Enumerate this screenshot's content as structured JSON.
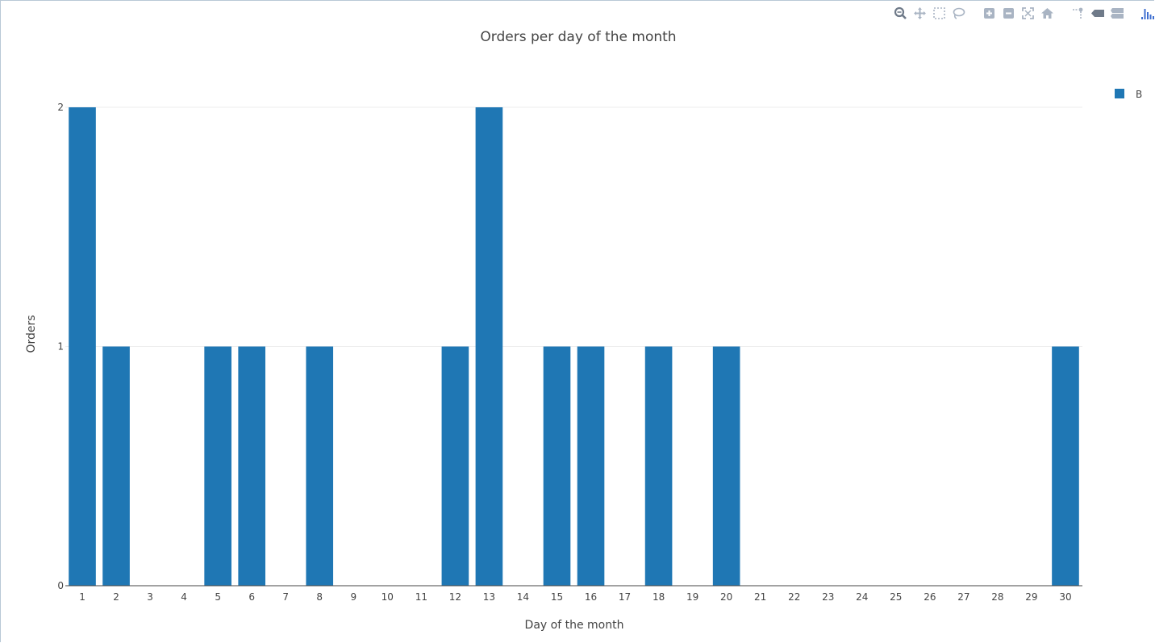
{
  "modebar": {
    "buttons": [
      {
        "name": "zoom-icon",
        "color": "#6f7a89"
      },
      {
        "name": "pan-icon",
        "color": "#a9b4c3"
      },
      {
        "name": "box-select-icon",
        "color": "#a9b4c3"
      },
      {
        "name": "lasso-select-icon",
        "color": "#a9b4c3"
      },
      {
        "name": "zoom-in-icon",
        "color": "#a9b4c3"
      },
      {
        "name": "zoom-out-icon",
        "color": "#a9b4c3"
      },
      {
        "name": "autoscale-icon",
        "color": "#a9b4c3"
      },
      {
        "name": "reset-axes-icon",
        "color": "#a9b4c3"
      },
      {
        "name": "spike-lines-icon",
        "color": "#a9b4c3"
      },
      {
        "name": "hover-closest-icon",
        "color": "#6f7a89"
      },
      {
        "name": "hover-compare-icon",
        "color": "#a9b4c3"
      },
      {
        "name": "plotly-logo-icon",
        "color": "#3f6fd0"
      }
    ]
  },
  "chart_data": {
    "type": "bar",
    "title": "Orders per day of the month",
    "xlabel": "Day of the month",
    "ylabel": "Orders",
    "categories": [
      "1",
      "2",
      "3",
      "4",
      "5",
      "6",
      "7",
      "8",
      "9",
      "10",
      "11",
      "12",
      "13",
      "14",
      "15",
      "16",
      "17",
      "18",
      "19",
      "20",
      "21",
      "22",
      "23",
      "24",
      "25",
      "26",
      "27",
      "28",
      "29",
      "30"
    ],
    "series": [
      {
        "name": "B",
        "color": "#1f77b4",
        "values": [
          2,
          1,
          0,
          0,
          1,
          1,
          0,
          1,
          0,
          0,
          0,
          1,
          2,
          0,
          1,
          1,
          0,
          1,
          0,
          1,
          0,
          0,
          0,
          0,
          0,
          0,
          0,
          0,
          0,
          1
        ]
      }
    ],
    "ylim": [
      0,
      2
    ],
    "yticks": [
      "0",
      "1",
      "2"
    ],
    "grid": true,
    "legend": "top-right"
  }
}
